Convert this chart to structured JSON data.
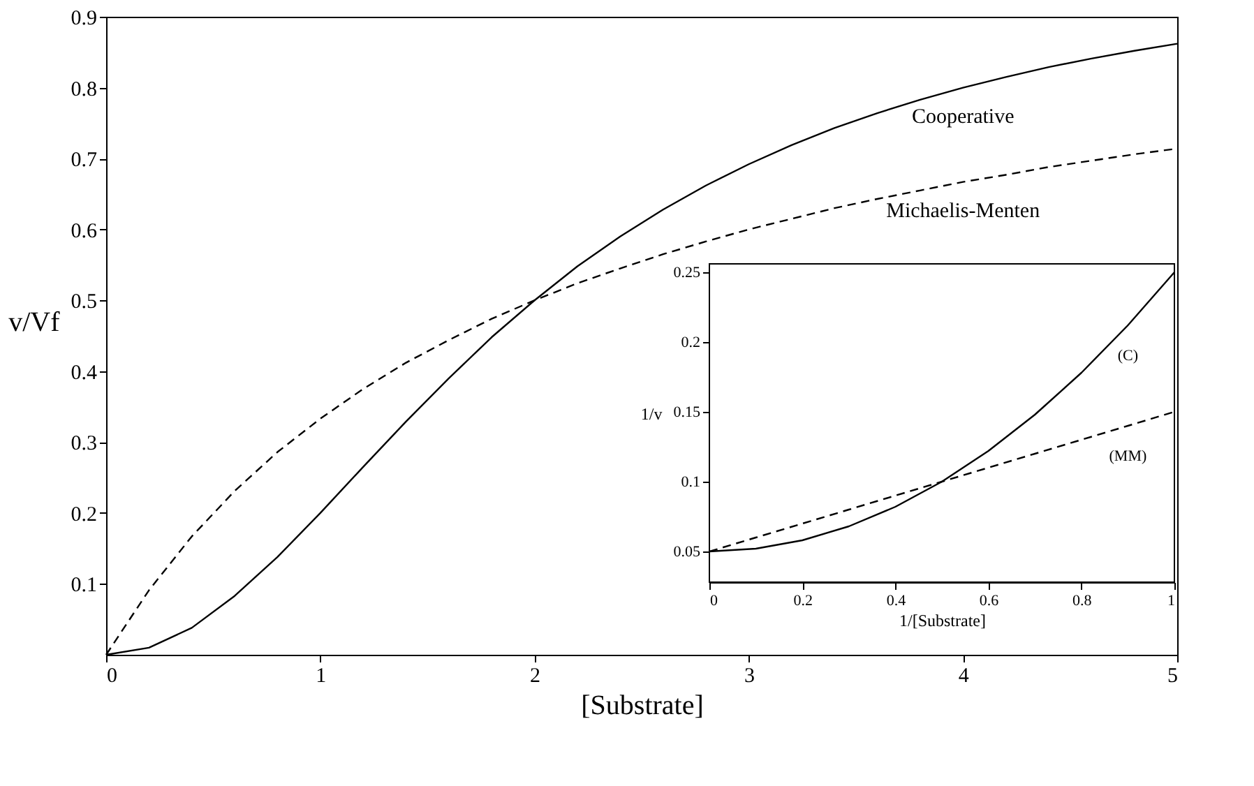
{
  "chart_data": [
    {
      "type": "line",
      "xlabel": "[Substrate]",
      "ylabel": "v/Vf",
      "xlim": [
        0,
        5
      ],
      "ylim": [
        0,
        0.9
      ],
      "xticks": [
        0,
        1,
        2,
        3,
        4,
        5
      ],
      "yticks": [
        0.1,
        0.2,
        0.3,
        0.4,
        0.5,
        0.6,
        0.7,
        0.8,
        0.9
      ],
      "grid": false,
      "x": [
        0,
        0.2,
        0.4,
        0.6,
        0.8,
        1.0,
        1.2,
        1.4,
        1.6,
        1.8,
        2.0,
        2.2,
        2.4,
        2.6,
        2.8,
        3.0,
        3.2,
        3.4,
        3.6,
        3.8,
        4.0,
        4.2,
        4.4,
        4.6,
        4.8,
        5.0
      ],
      "series": [
        {
          "name": "Cooperative",
          "color": "#000000",
          "line_style": "solid",
          "values": [
            0,
            0.01,
            0.038,
            0.083,
            0.138,
            0.2,
            0.265,
            0.329,
            0.39,
            0.448,
            0.5,
            0.548,
            0.59,
            0.628,
            0.662,
            0.692,
            0.719,
            0.743,
            0.764,
            0.783,
            0.8,
            0.815,
            0.829,
            0.841,
            0.852,
            0.862
          ]
        },
        {
          "name": "Michaelis-Menten",
          "color": "#000000",
          "line_style": "dashed",
          "values": [
            0,
            0.091,
            0.167,
            0.231,
            0.286,
            0.333,
            0.375,
            0.412,
            0.444,
            0.474,
            0.5,
            0.524,
            0.545,
            0.565,
            0.583,
            0.6,
            0.615,
            0.63,
            0.643,
            0.655,
            0.667,
            0.677,
            0.688,
            0.697,
            0.706,
            0.714
          ]
        }
      ]
    },
    {
      "type": "line",
      "xlabel": "1/[Substrate]",
      "ylabel": "1/v",
      "xlim": [
        0,
        1
      ],
      "ylim": [
        0.028,
        0.256
      ],
      "xticks": [
        0,
        0.2,
        0.4,
        0.6,
        0.8,
        1
      ],
      "yticks": [
        0.05,
        0.1,
        0.15,
        0.2,
        0.25
      ],
      "grid": false,
      "x": [
        0,
        0.1,
        0.2,
        0.3,
        0.4,
        0.5,
        0.6,
        0.7,
        0.8,
        0.9,
        1.0
      ],
      "series": [
        {
          "name": "(C)",
          "color": "#000000",
          "line_style": "solid",
          "values": [
            0.05,
            0.052,
            0.058,
            0.068,
            0.082,
            0.1,
            0.122,
            0.148,
            0.178,
            0.212,
            0.25
          ]
        },
        {
          "name": "(MM)",
          "color": "#000000",
          "line_style": "dashed",
          "values": [
            0.05,
            0.06,
            0.07,
            0.08,
            0.09,
            0.1,
            0.11,
            0.12,
            0.13,
            0.14,
            0.15
          ]
        }
      ]
    }
  ]
}
